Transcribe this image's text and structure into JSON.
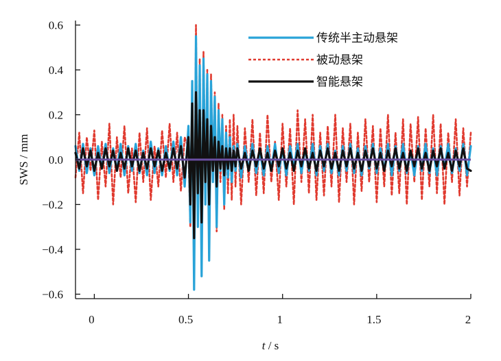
{
  "chart_data": {
    "type": "line",
    "title": "",
    "xlabel": "t / s",
    "xlabel_var": "t",
    "xlabel_unit": " / s",
    "ylabel": "SWS / mm",
    "xlim": [
      -0.1,
      2.0
    ],
    "ylim": [
      -0.62,
      0.62
    ],
    "xticks": [
      0,
      0.5,
      1,
      1.5,
      2
    ],
    "xtick_labels": [
      "0",
      "0.5",
      "1",
      "1.5",
      "2"
    ],
    "yticks": [
      0.6,
      0.4,
      0.2,
      0.0,
      -0.2,
      -0.4,
      -0.6
    ],
    "ytick_labels": [
      "0.6",
      "0.4",
      "0.2",
      "0.0",
      "−0.2",
      "−0.4",
      "−0.6"
    ],
    "grid": false,
    "legend_position": "top-right",
    "series": [
      {
        "name": "传统半主动悬架",
        "color": "#29a3d8",
        "dash": "solid",
        "x": [
          -0.1,
          -0.08,
          -0.06,
          -0.04,
          -0.02,
          0.0,
          0.02,
          0.04,
          0.06,
          0.08,
          0.1,
          0.12,
          0.14,
          0.16,
          0.18,
          0.2,
          0.22,
          0.24,
          0.26,
          0.28,
          0.3,
          0.32,
          0.34,
          0.36,
          0.38,
          0.4,
          0.42,
          0.44,
          0.46,
          0.48,
          0.5,
          0.51,
          0.52,
          0.53,
          0.54,
          0.55,
          0.56,
          0.57,
          0.58,
          0.59,
          0.6,
          0.61,
          0.62,
          0.63,
          0.64,
          0.65,
          0.66,
          0.67,
          0.68,
          0.69,
          0.7,
          0.71,
          0.72,
          0.73,
          0.74,
          0.75,
          0.76,
          0.78,
          0.8,
          0.82,
          0.84,
          0.86,
          0.88,
          0.9,
          0.92,
          0.94,
          0.96,
          0.98,
          1.0,
          1.02,
          1.04,
          1.06,
          1.08,
          1.1,
          1.12,
          1.14,
          1.16,
          1.18,
          1.2,
          1.22,
          1.24,
          1.26,
          1.28,
          1.3,
          1.32,
          1.34,
          1.36,
          1.38,
          1.4,
          1.42,
          1.44,
          1.46,
          1.48,
          1.5,
          1.52,
          1.54,
          1.56,
          1.58,
          1.6,
          1.62,
          1.64,
          1.66,
          1.68,
          1.7,
          1.72,
          1.74,
          1.76,
          1.78,
          1.8,
          1.82,
          1.84,
          1.86,
          1.88,
          1.9,
          1.92,
          1.94,
          1.96,
          1.98,
          2.0
        ],
        "y": [
          0.06,
          -0.05,
          0.07,
          -0.06,
          0.05,
          -0.07,
          0.06,
          -0.04,
          0.07,
          -0.06,
          0.05,
          -0.05,
          0.07,
          -0.07,
          0.06,
          -0.05,
          0.07,
          -0.06,
          0.04,
          -0.07,
          0.08,
          -0.06,
          0.05,
          -0.07,
          0.06,
          -0.05,
          0.08,
          -0.07,
          0.1,
          -0.12,
          0.15,
          -0.28,
          0.35,
          -0.58,
          0.55,
          -0.3,
          0.42,
          -0.52,
          0.45,
          -0.2,
          0.38,
          -0.45,
          0.35,
          -0.1,
          0.28,
          -0.3,
          0.22,
          -0.05,
          0.18,
          -0.2,
          0.12,
          -0.08,
          0.1,
          -0.1,
          0.06,
          -0.05,
          0.07,
          -0.08,
          0.06,
          -0.05,
          0.07,
          -0.06,
          0.04,
          -0.07,
          0.06,
          -0.05,
          0.07,
          -0.06,
          0.05,
          -0.07,
          0.06,
          -0.04,
          0.07,
          -0.06,
          0.05,
          -0.05,
          0.07,
          -0.07,
          0.06,
          -0.05,
          0.07,
          -0.06,
          0.04,
          -0.07,
          0.06,
          -0.05,
          0.07,
          -0.06,
          0.05,
          -0.07,
          0.06,
          -0.04,
          0.07,
          -0.06,
          0.05,
          -0.05,
          0.07,
          -0.07,
          0.06,
          -0.05,
          0.07,
          -0.06,
          0.04,
          -0.07,
          0.06,
          -0.05,
          0.07,
          -0.06,
          0.05,
          -0.07,
          0.06,
          -0.04,
          0.07,
          -0.06,
          0.05,
          -0.05,
          0.07,
          -0.07,
          0.06
        ]
      },
      {
        "name": "被动悬架",
        "color": "#e03a2f",
        "dash": "dashed",
        "x": [
          -0.1,
          -0.08,
          -0.06,
          -0.04,
          -0.02,
          0.0,
          0.02,
          0.04,
          0.06,
          0.08,
          0.1,
          0.12,
          0.14,
          0.16,
          0.18,
          0.2,
          0.22,
          0.24,
          0.26,
          0.28,
          0.3,
          0.32,
          0.34,
          0.36,
          0.38,
          0.4,
          0.42,
          0.44,
          0.46,
          0.48,
          0.5,
          0.51,
          0.52,
          0.53,
          0.54,
          0.55,
          0.56,
          0.57,
          0.58,
          0.59,
          0.6,
          0.61,
          0.62,
          0.63,
          0.64,
          0.65,
          0.66,
          0.67,
          0.68,
          0.69,
          0.7,
          0.71,
          0.72,
          0.73,
          0.74,
          0.75,
          0.76,
          0.78,
          0.8,
          0.82,
          0.84,
          0.86,
          0.88,
          0.9,
          0.92,
          0.94,
          0.96,
          0.98,
          1.0,
          1.02,
          1.04,
          1.06,
          1.08,
          1.1,
          1.12,
          1.14,
          1.16,
          1.18,
          1.2,
          1.22,
          1.24,
          1.26,
          1.28,
          1.3,
          1.32,
          1.34,
          1.36,
          1.38,
          1.4,
          1.42,
          1.44,
          1.46,
          1.48,
          1.5,
          1.52,
          1.54,
          1.56,
          1.58,
          1.6,
          1.62,
          1.64,
          1.66,
          1.68,
          1.7,
          1.72,
          1.74,
          1.76,
          1.78,
          1.8,
          1.82,
          1.84,
          1.86,
          1.88,
          1.9,
          1.92,
          1.94,
          1.96,
          1.98,
          2.0
        ],
        "y": [
          -0.08,
          0.12,
          -0.15,
          0.1,
          -0.05,
          0.13,
          -0.18,
          0.08,
          -0.12,
          0.16,
          -0.2,
          0.1,
          -0.08,
          0.15,
          -0.15,
          0.05,
          -0.19,
          0.12,
          -0.1,
          0.14,
          -0.18,
          0.06,
          -0.12,
          0.13,
          -0.08,
          0.16,
          -0.1,
          0.12,
          -0.14,
          0.1,
          0.05,
          -0.3,
          0.3,
          -0.55,
          0.6,
          -0.25,
          0.45,
          -0.5,
          0.48,
          -0.15,
          0.4,
          -0.44,
          0.38,
          -0.08,
          0.3,
          -0.32,
          0.25,
          -0.1,
          0.2,
          -0.22,
          0.15,
          -0.15,
          0.18,
          -0.18,
          0.2,
          -0.12,
          0.15,
          -0.2,
          0.14,
          -0.1,
          0.18,
          -0.16,
          0.12,
          -0.15,
          0.2,
          -0.1,
          0.08,
          -0.18,
          0.16,
          -0.12,
          0.14,
          -0.2,
          0.22,
          -0.1,
          0.18,
          -0.15,
          0.2,
          -0.18,
          0.12,
          -0.16,
          0.15,
          -0.12,
          0.2,
          -0.19,
          0.14,
          -0.1,
          0.16,
          -0.2,
          0.12,
          -0.14,
          0.18,
          -0.1,
          0.15,
          -0.19,
          0.14,
          -0.12,
          0.2,
          -0.16,
          0.12,
          -0.15,
          0.18,
          -0.2,
          0.16,
          -0.1,
          0.19,
          -0.18,
          0.14,
          -0.12,
          0.2,
          -0.15,
          0.16,
          -0.2,
          0.12,
          -0.1,
          0.18,
          -0.16,
          0.14,
          -0.12,
          0.12
        ]
      },
      {
        "name": "智能悬架",
        "color": "#111111",
        "dash": "solid",
        "x": [
          -0.1,
          -0.08,
          -0.06,
          -0.04,
          -0.02,
          0.0,
          0.02,
          0.04,
          0.06,
          0.08,
          0.1,
          0.12,
          0.14,
          0.16,
          0.18,
          0.2,
          0.22,
          0.24,
          0.26,
          0.28,
          0.3,
          0.32,
          0.34,
          0.36,
          0.38,
          0.4,
          0.42,
          0.44,
          0.46,
          0.48,
          0.5,
          0.51,
          0.52,
          0.53,
          0.54,
          0.55,
          0.56,
          0.57,
          0.58,
          0.59,
          0.6,
          0.61,
          0.62,
          0.63,
          0.64,
          0.65,
          0.66,
          0.67,
          0.68,
          0.69,
          0.7,
          0.71,
          0.72,
          0.73,
          0.74,
          0.75,
          0.76,
          0.78,
          0.8,
          0.82,
          0.84,
          0.86,
          0.88,
          0.9,
          0.92,
          0.94,
          0.96,
          0.98,
          1.0,
          1.02,
          1.04,
          1.06,
          1.08,
          1.1,
          1.12,
          1.14,
          1.16,
          1.18,
          1.2,
          1.22,
          1.24,
          1.26,
          1.28,
          1.3,
          1.32,
          1.34,
          1.36,
          1.38,
          1.4,
          1.42,
          1.44,
          1.46,
          1.48,
          1.5,
          1.52,
          1.54,
          1.56,
          1.58,
          1.6,
          1.62,
          1.64,
          1.66,
          1.68,
          1.7,
          1.72,
          1.74,
          1.76,
          1.78,
          1.8,
          1.82,
          1.84,
          1.86,
          1.88,
          1.9,
          1.92,
          1.94,
          1.96,
          1.98,
          2.0
        ],
        "y": [
          0.03,
          -0.04,
          0.05,
          -0.03,
          0.04,
          -0.05,
          0.03,
          -0.04,
          0.05,
          -0.03,
          0.04,
          -0.05,
          0.03,
          -0.04,
          0.05,
          -0.03,
          0.04,
          -0.05,
          0.03,
          -0.04,
          0.05,
          -0.03,
          0.04,
          -0.05,
          0.03,
          -0.04,
          0.05,
          -0.04,
          0.06,
          -0.08,
          0.1,
          -0.2,
          0.25,
          -0.35,
          0.3,
          -0.15,
          0.22,
          -0.28,
          0.22,
          -0.1,
          0.18,
          -0.2,
          0.15,
          -0.05,
          0.1,
          -0.12,
          0.08,
          -0.04,
          0.06,
          -0.07,
          0.05,
          -0.04,
          0.05,
          -0.05,
          0.04,
          -0.03,
          0.05,
          -0.04,
          0.03,
          -0.05,
          0.04,
          -0.03,
          0.05,
          -0.04,
          0.03,
          -0.05,
          0.04,
          -0.03,
          0.05,
          -0.04,
          0.03,
          -0.05,
          0.04,
          -0.03,
          0.05,
          -0.04,
          0.03,
          -0.05,
          0.04,
          -0.03,
          0.05,
          -0.04,
          0.03,
          -0.05,
          0.04,
          -0.03,
          0.05,
          -0.04,
          0.03,
          -0.05,
          0.04,
          -0.03,
          0.05,
          -0.04,
          0.03,
          -0.05,
          0.04,
          -0.03,
          0.05,
          -0.04,
          0.03,
          -0.05,
          0.04,
          -0.03,
          0.05,
          -0.04,
          0.03,
          -0.05,
          0.04,
          -0.03,
          0.05,
          -0.04,
          0.03,
          -0.05,
          0.04,
          -0.03,
          0.05,
          -0.04,
          -0.05
        ]
      }
    ],
    "reference_line": {
      "y": 0.0,
      "color": "#6a4fa3"
    }
  }
}
